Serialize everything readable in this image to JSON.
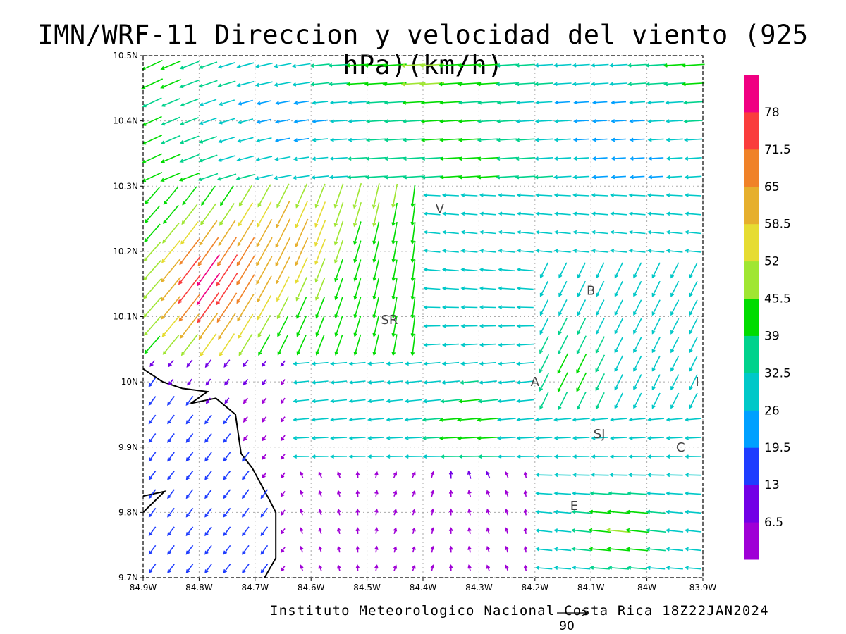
{
  "title": "IMN/WRF-11 Direccion y velocidad del viento (925 hPa)(km/h)",
  "credit": "Instituto Meteorologico Nacional Costa Rica 18Z22JAN2024",
  "reference_vector": {
    "label": "90"
  },
  "colors": {
    "bins": [
      "#9f00d6",
      "#7200e6",
      "#1e3cff",
      "#00a0ff",
      "#00c8c8",
      "#00d28c",
      "#00dc00",
      "#a0e632",
      "#e6dc32",
      "#e6af2d",
      "#f08228",
      "#fa3c3c",
      "#f00082"
    ],
    "coastline": "#000000",
    "grid": "#aaaaaa"
  },
  "chart_data": {
    "type": "vector-field",
    "title": "IMN/WRF-11 Direccion y velocidad del viento (925 hPa)(km/h)",
    "xlim": [
      -84.9,
      -83.9
    ],
    "ylim": [
      9.7,
      10.5
    ],
    "xticks": [
      "84.9W",
      "84.8W",
      "84.7W",
      "84.6W",
      "84.5W",
      "84.4W",
      "84.3W",
      "84.2W",
      "84.1W",
      "84W",
      "83.9W"
    ],
    "yticks": [
      "9.7N",
      "9.8N",
      "9.9N",
      "10N",
      "10.1N",
      "10.2N",
      "10.3N",
      "10.4N",
      "10.5N"
    ],
    "grid": true,
    "colorbar": {
      "position": "right",
      "levels": [
        "6.5",
        "13",
        "19.5",
        "26",
        "32.5",
        "39",
        "45.5",
        "52",
        "58.5",
        "65",
        "71.5",
        "78"
      ]
    },
    "places": [
      {
        "label": "V",
        "lon": -84.37,
        "lat": 10.265
      },
      {
        "label": "SR",
        "lon": -84.46,
        "lat": 10.095
      },
      {
        "label": "B",
        "lon": -84.1,
        "lat": 10.14
      },
      {
        "label": "A",
        "lon": -84.2,
        "lat": 10.0
      },
      {
        "label": "I",
        "lon": -83.91,
        "lat": 10.0
      },
      {
        "label": "SJ",
        "lon": -84.085,
        "lat": 9.92
      },
      {
        "label": "C",
        "lon": -83.94,
        "lat": 9.9
      },
      {
        "label": "E",
        "lon": -84.13,
        "lat": 9.81
      }
    ],
    "coastline": [
      {
        "lon": -84.9,
        "lat": 10.02
      },
      {
        "lon": -84.865,
        "lat": 10.0
      },
      {
        "lon": -84.83,
        "lat": 9.99
      },
      {
        "lon": -84.785,
        "lat": 9.985
      },
      {
        "lon": -84.815,
        "lat": 9.967
      },
      {
        "lon": -84.77,
        "lat": 9.975
      },
      {
        "lon": -84.735,
        "lat": 9.95
      },
      {
        "lon": -84.725,
        "lat": 9.89
      },
      {
        "lon": -84.705,
        "lat": 9.868
      },
      {
        "lon": -84.675,
        "lat": 9.82
      },
      {
        "lon": -84.663,
        "lat": 9.8
      },
      {
        "lon": -84.663,
        "lat": 9.73
      },
      {
        "lon": -84.683,
        "lat": 9.7
      }
    ],
    "coastline_south": [
      {
        "lon": -84.9,
        "lat": 9.825
      },
      {
        "lon": -84.862,
        "lat": 9.832
      },
      {
        "lon": -84.9,
        "lat": 9.8
      }
    ]
  }
}
